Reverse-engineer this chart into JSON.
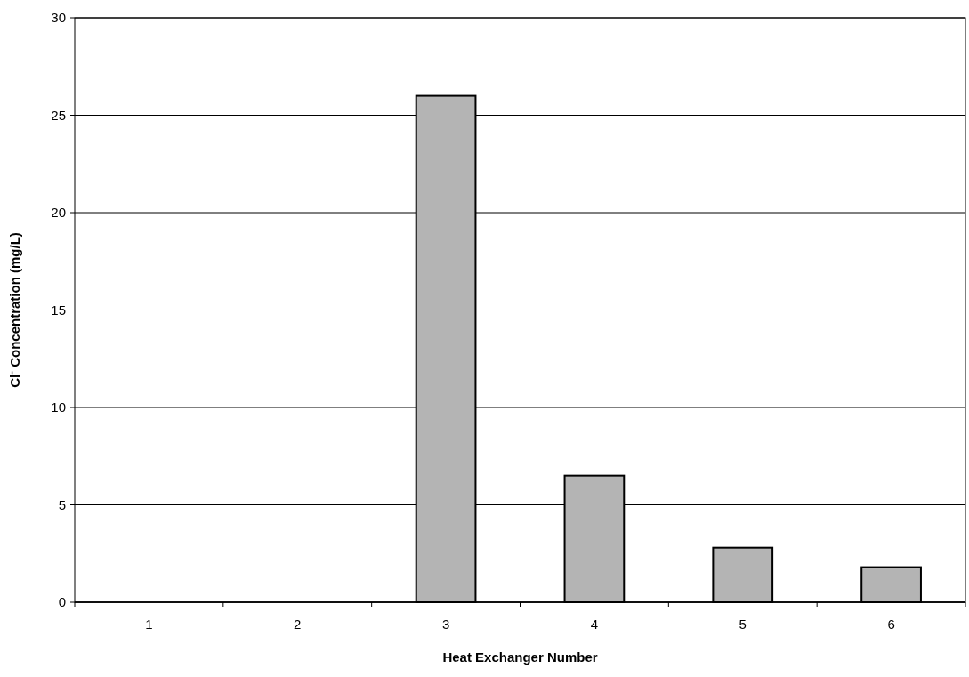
{
  "chart_data": {
    "type": "bar",
    "xlabel": "Heat Exchanger Number",
    "ylabel": "Cl$^{-}$ Concentration (mg/L)",
    "categories": [
      "1",
      "2",
      "3",
      "4",
      "5",
      "6"
    ],
    "values": [
      0,
      0,
      26,
      6.5,
      2.8,
      1.8
    ],
    "color": "#b4b4b4",
    "ylim": [
      0,
      30
    ],
    "yticks": [
      0,
      5,
      10,
      15,
      20,
      25,
      30
    ],
    "grid": "y"
  }
}
